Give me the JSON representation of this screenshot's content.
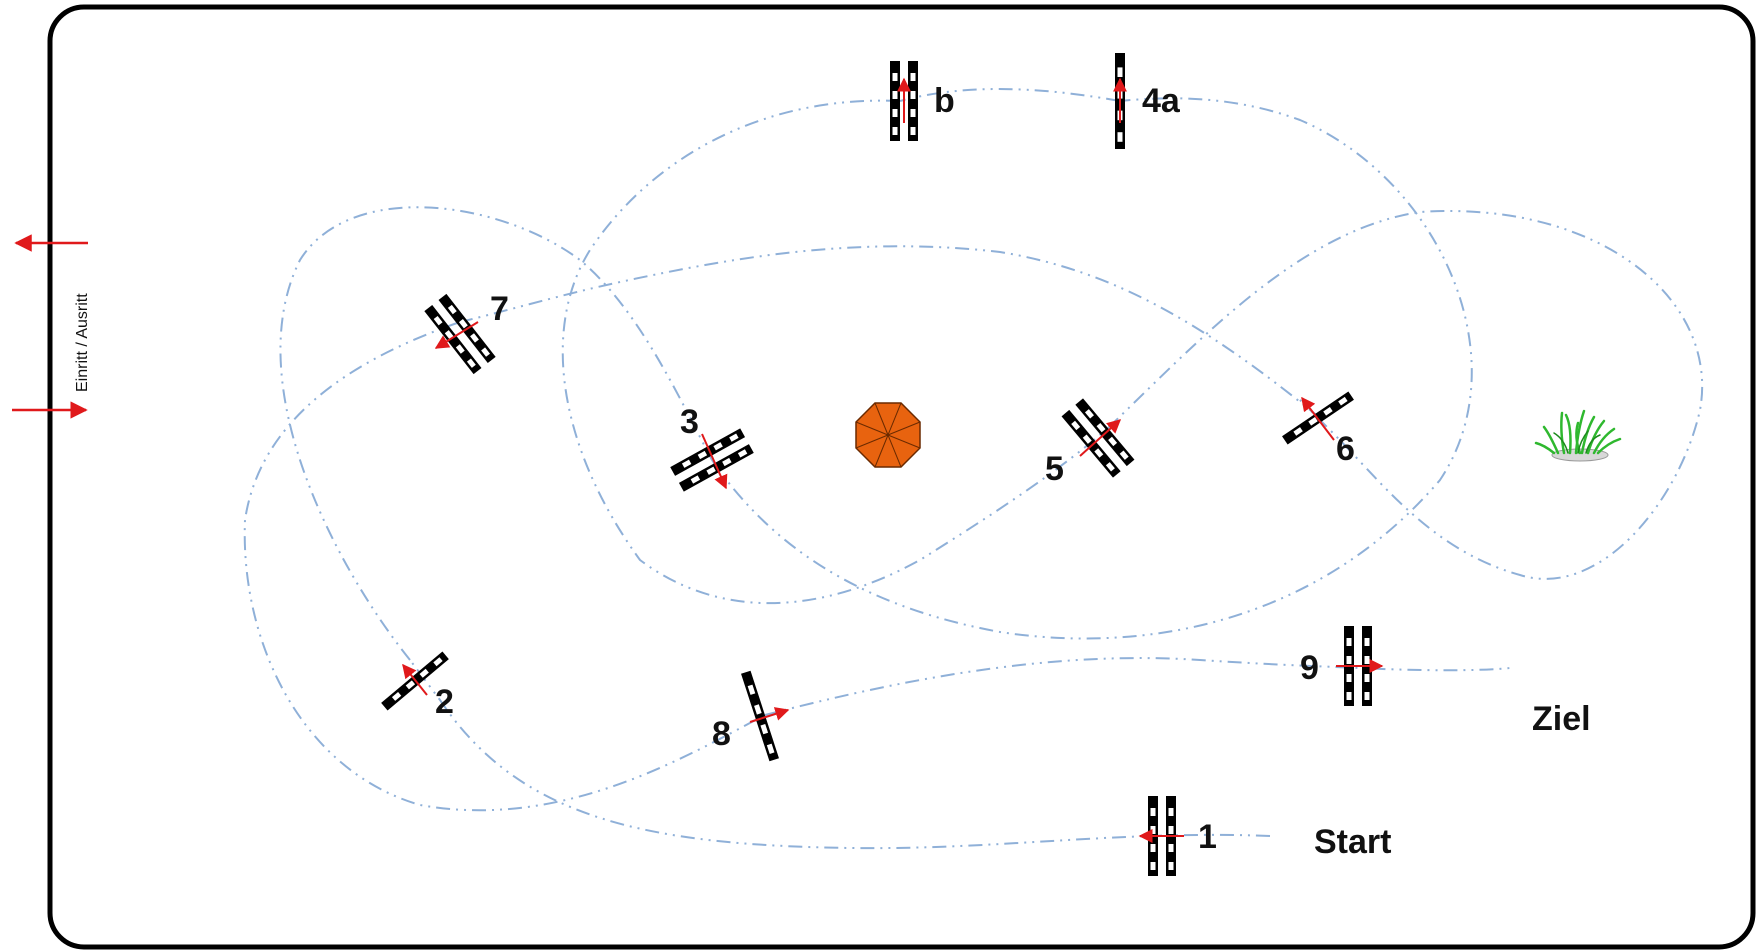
{
  "side_label": "Einritt / Ausritt",
  "start_label": "Start",
  "finish_label": "Ziel",
  "obstacles": [
    {
      "id": "1",
      "label": "1",
      "type": "double"
    },
    {
      "id": "2",
      "label": "2",
      "type": "single"
    },
    {
      "id": "3",
      "label": "3",
      "type": "double"
    },
    {
      "id": "4a",
      "label": "4a",
      "type": "single"
    },
    {
      "id": "b",
      "label": "b",
      "type": "double"
    },
    {
      "id": "5",
      "label": "5",
      "type": "double"
    },
    {
      "id": "6",
      "label": "6",
      "type": "single"
    },
    {
      "id": "7",
      "label": "7",
      "type": "double"
    },
    {
      "id": "8",
      "label": "8",
      "type": "single"
    },
    {
      "id": "9",
      "label": "9",
      "type": "double"
    }
  ],
  "decorations": [
    "umbrella-icon",
    "grass-icon"
  ],
  "colors": {
    "route": "#8fb0d8",
    "arrow": "#e0191b",
    "pole_dark": "#000000",
    "pole_light": "#ffffff",
    "umbrella": "#e8630f",
    "grass": "#2fb82f",
    "border": "#000000"
  }
}
